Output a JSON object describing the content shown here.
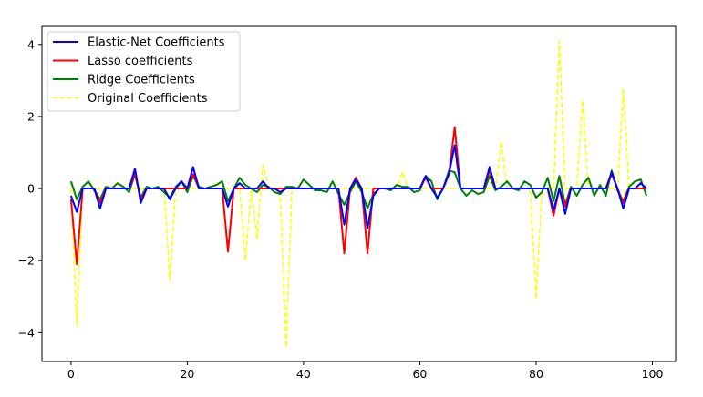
{
  "chart_data": {
    "type": "line",
    "title": "",
    "xlabel": "",
    "ylabel": "",
    "xlim": [
      -5,
      104
    ],
    "ylim": [
      -4.8,
      4.5
    ],
    "xticks": [
      0,
      20,
      40,
      60,
      80,
      100
    ],
    "yticks": [
      -4,
      -2,
      0,
      2,
      4
    ],
    "grid": false,
    "legend_position": "top-left",
    "series": [
      {
        "name": "Elastic-Net Coefficients",
        "color": "#0000ff",
        "style": "solid",
        "x": [
          0,
          1,
          2,
          3,
          4,
          5,
          6,
          7,
          8,
          9,
          10,
          11,
          12,
          13,
          14,
          15,
          16,
          17,
          18,
          19,
          20,
          21,
          22,
          23,
          24,
          25,
          26,
          27,
          28,
          29,
          30,
          31,
          32,
          33,
          34,
          35,
          36,
          37,
          38,
          39,
          40,
          41,
          42,
          43,
          44,
          45,
          46,
          47,
          48,
          49,
          50,
          51,
          52,
          53,
          54,
          55,
          56,
          57,
          58,
          59,
          60,
          61,
          62,
          63,
          64,
          65,
          66,
          67,
          68,
          69,
          70,
          71,
          72,
          73,
          74,
          75,
          76,
          77,
          78,
          79,
          80,
          81,
          82,
          83,
          84,
          85,
          86,
          87,
          88,
          89,
          90,
          91,
          92,
          93,
          94,
          95,
          96,
          97,
          98,
          99
        ],
        "y": [
          -0.2,
          -0.65,
          0,
          0,
          0,
          -0.55,
          0,
          0,
          0,
          0,
          0,
          0.55,
          -0.4,
          0,
          0,
          0,
          0,
          -0.3,
          0,
          0.2,
          0,
          0.6,
          0,
          0,
          0,
          0,
          0,
          -0.5,
          0,
          0.15,
          0,
          0,
          0,
          0.2,
          0,
          0,
          -0.1,
          0,
          0,
          0,
          0,
          0,
          0,
          0,
          0,
          0,
          0,
          -1.0,
          0,
          0.25,
          0,
          -1.1,
          -0.2,
          0,
          0,
          0,
          0,
          0,
          0,
          0,
          0,
          0.35,
          0,
          -0.25,
          0,
          0.4,
          1.2,
          0,
          0,
          0,
          0,
          0,
          0.6,
          0,
          0,
          0,
          0,
          0,
          0,
          0,
          0,
          0,
          0,
          -0.6,
          0,
          -0.7,
          0,
          0,
          0,
          0,
          0,
          0,
          0,
          0.45,
          0,
          -0.55,
          0,
          0,
          0.15,
          0
        ]
      },
      {
        "name": "Lasso coefficients",
        "color": "#ff0000",
        "style": "solid",
        "x": [
          0,
          1,
          2,
          3,
          4,
          5,
          6,
          7,
          8,
          9,
          10,
          11,
          12,
          13,
          14,
          15,
          16,
          17,
          18,
          19,
          20,
          21,
          22,
          23,
          24,
          25,
          26,
          27,
          28,
          29,
          30,
          31,
          32,
          33,
          34,
          35,
          36,
          37,
          38,
          39,
          40,
          41,
          42,
          43,
          44,
          45,
          46,
          47,
          48,
          49,
          50,
          51,
          52,
          53,
          54,
          55,
          56,
          57,
          58,
          59,
          60,
          61,
          62,
          63,
          64,
          65,
          66,
          67,
          68,
          69,
          70,
          71,
          72,
          73,
          74,
          75,
          76,
          77,
          78,
          79,
          80,
          81,
          82,
          83,
          84,
          85,
          86,
          87,
          88,
          89,
          90,
          91,
          92,
          93,
          94,
          95,
          96,
          97,
          98,
          99
        ],
        "y": [
          -0.3,
          -2.1,
          0,
          0,
          0,
          -0.4,
          0,
          0,
          0,
          0,
          0,
          0.4,
          -0.3,
          0,
          0,
          0,
          0,
          0,
          0,
          0,
          0,
          0.4,
          0,
          0,
          0,
          0,
          0,
          -1.75,
          0,
          0,
          0,
          0,
          0,
          0,
          0,
          0,
          0,
          0,
          0,
          0,
          0,
          0,
          0,
          0,
          0,
          0,
          0,
          -1.8,
          0,
          0.3,
          0,
          -1.8,
          0,
          0,
          0,
          0,
          0,
          0,
          0,
          0,
          0,
          0.3,
          0,
          0,
          0,
          0.4,
          1.7,
          0,
          0,
          0,
          0,
          0,
          0.5,
          0,
          0,
          0,
          0,
          0,
          0,
          0,
          0,
          0,
          0,
          -0.75,
          0,
          -0.5,
          0,
          0,
          0,
          0,
          0,
          0,
          0,
          0.4,
          0,
          -0.4,
          0,
          0,
          0,
          0
        ]
      },
      {
        "name": "Ridge Coefficients",
        "color": "#008000",
        "style": "solid",
        "x": [
          0,
          1,
          2,
          3,
          4,
          5,
          6,
          7,
          8,
          9,
          10,
          11,
          12,
          13,
          14,
          15,
          16,
          17,
          18,
          19,
          20,
          21,
          22,
          23,
          24,
          25,
          26,
          27,
          28,
          29,
          30,
          31,
          32,
          33,
          34,
          35,
          36,
          37,
          38,
          39,
          40,
          41,
          42,
          43,
          44,
          45,
          46,
          47,
          48,
          49,
          50,
          51,
          52,
          53,
          54,
          55,
          56,
          57,
          58,
          59,
          60,
          61,
          62,
          63,
          64,
          65,
          66,
          67,
          68,
          69,
          70,
          71,
          72,
          73,
          74,
          75,
          76,
          77,
          78,
          79,
          80,
          81,
          82,
          83,
          84,
          85,
          86,
          87,
          88,
          89,
          90,
          91,
          92,
          93,
          94,
          95,
          96,
          97,
          98,
          99
        ],
        "y": [
          0.2,
          -0.3,
          0.05,
          0.2,
          -0.05,
          -0.3,
          0.05,
          0,
          0.15,
          0.05,
          -0.1,
          0.4,
          -0.25,
          0.05,
          0,
          0.05,
          -0.1,
          -0.25,
          0.05,
          0.2,
          -0.1,
          0.35,
          0.05,
          0,
          0.05,
          0.1,
          0.2,
          -0.35,
          0,
          0.3,
          0.1,
          0,
          -0.1,
          0.1,
          0.05,
          -0.1,
          -0.15,
          0.05,
          0.05,
          0,
          0.25,
          0.1,
          -0.05,
          -0.05,
          -0.1,
          0.2,
          -0.15,
          -0.45,
          -0.1,
          0.2,
          -0.1,
          -0.55,
          -0.15,
          0,
          0,
          -0.05,
          0.1,
          0.05,
          0.05,
          -0.1,
          -0.05,
          0.35,
          0.2,
          -0.3,
          0,
          0.5,
          0.45,
          0,
          -0.2,
          -0.05,
          -0.15,
          -0.1,
          0.35,
          -0.05,
          0.05,
          0.2,
          0,
          -0.05,
          0.2,
          0.1,
          -0.25,
          -0.1,
          0.3,
          -0.35,
          0.35,
          -0.45,
          0.05,
          -0.2,
          0.1,
          0.3,
          -0.2,
          0.1,
          -0.2,
          0.5,
          -0.05,
          -0.35,
          0.05,
          0.2,
          0.25,
          -0.2
        ]
      },
      {
        "name": "Original Coefficients",
        "color": "#ffff00",
        "style": "dashed",
        "x": [
          0,
          1,
          2,
          3,
          4,
          5,
          6,
          7,
          8,
          9,
          10,
          11,
          12,
          13,
          14,
          15,
          16,
          17,
          18,
          19,
          20,
          21,
          22,
          23,
          24,
          25,
          26,
          27,
          28,
          29,
          30,
          31,
          32,
          33,
          34,
          35,
          36,
          37,
          38,
          39,
          40,
          41,
          42,
          43,
          44,
          45,
          46,
          47,
          48,
          49,
          50,
          51,
          52,
          53,
          54,
          55,
          56,
          57,
          58,
          59,
          60,
          61,
          62,
          63,
          64,
          65,
          66,
          67,
          68,
          69,
          70,
          71,
          72,
          73,
          74,
          75,
          76,
          77,
          78,
          79,
          80,
          81,
          82,
          83,
          84,
          85,
          86,
          87,
          88,
          89,
          90,
          91,
          92,
          93,
          94,
          95,
          96,
          97,
          98,
          99
        ],
        "y": [
          0,
          -3.8,
          0,
          0,
          0,
          0,
          0,
          0,
          0,
          0,
          0,
          0,
          0,
          0,
          0,
          0,
          0,
          -2.55,
          0,
          0,
          0,
          0,
          0,
          0,
          0,
          0,
          0,
          0,
          0,
          0,
          -2.0,
          0,
          -1.4,
          0.65,
          0,
          0,
          -0.2,
          -4.4,
          0,
          0,
          0,
          0,
          0,
          0,
          0,
          0,
          0,
          0,
          0,
          0,
          0,
          0,
          0,
          0,
          0,
          0,
          0,
          0.45,
          0,
          0,
          0,
          0,
          0,
          0,
          0,
          0,
          0,
          0,
          0,
          0,
          0,
          0,
          0,
          0,
          1.3,
          0,
          0,
          0,
          0,
          0,
          -3.05,
          0,
          0,
          0,
          4.1,
          0,
          0,
          0,
          2.45,
          0,
          0,
          0,
          0,
          0,
          0,
          2.75,
          0,
          0,
          0,
          0
        ]
      }
    ]
  }
}
